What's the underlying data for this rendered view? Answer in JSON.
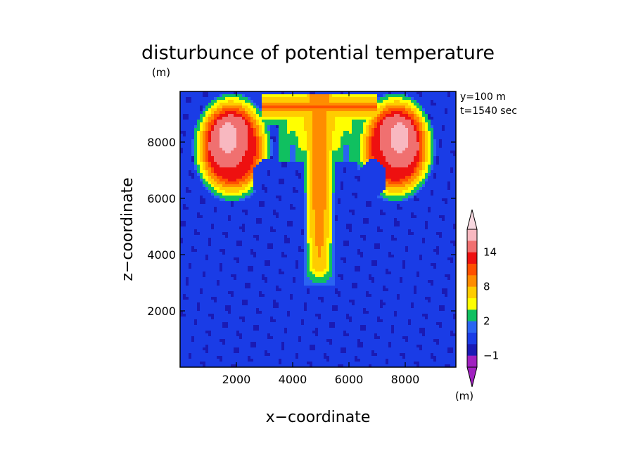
{
  "chart_data": {
    "type": "heatmap",
    "title": "disturbunce of potential temperature",
    "title_unit": "(m)",
    "annotation_lines": [
      "y=100 m",
      "t=1540 sec"
    ],
    "xlabel": "x−coordinate",
    "ylabel": "z−coordinate",
    "xlim": [
      0,
      9800
    ],
    "ylim": [
      0,
      9800
    ],
    "x_ticks": [
      2000,
      4000,
      6000,
      8000
    ],
    "y_ticks": [
      2000,
      4000,
      6000,
      8000
    ],
    "x_tick_labels": [
      "2000",
      "4000",
      "6000",
      "8000"
    ],
    "y_tick_labels": [
      "2000",
      "4000",
      "6000",
      "8000"
    ],
    "colorbar": {
      "levels": [
        -2,
        -1,
        0,
        1,
        2,
        4,
        6,
        8,
        10,
        12,
        14,
        16
      ],
      "colors": [
        "#a020c0",
        "#1a1ab4",
        "#1a3ce6",
        "#2a64f2",
        "#10c060",
        "#ffff00",
        "#ffcc00",
        "#ff8c00",
        "#ff5000",
        "#ee1010",
        "#f07070",
        "#f8b8c0"
      ],
      "extend_low_color": "#a020c0",
      "extend_high_color": "#f8d8e0",
      "tick_labels": [
        {
          "value": -1,
          "label": "−1"
        },
        {
          "value": 2,
          "label": "2"
        },
        {
          "value": 8,
          "label": "8"
        },
        {
          "value": 14,
          "label": "14"
        }
      ],
      "unit": "(m)"
    },
    "field_features": [
      {
        "kind": "stem",
        "x_center": 4950,
        "z_bottom": 2900,
        "z_top": 9700,
        "description": "rising thermal column, warm core 6-10"
      },
      {
        "kind": "vortex",
        "x_center": 1800,
        "z_center": 7900,
        "peak": 14
      },
      {
        "kind": "vortex",
        "x_center": 7700,
        "z_center": 7900,
        "peak": 14
      },
      {
        "kind": "background",
        "range": [
          -1,
          1
        ]
      }
    ]
  }
}
